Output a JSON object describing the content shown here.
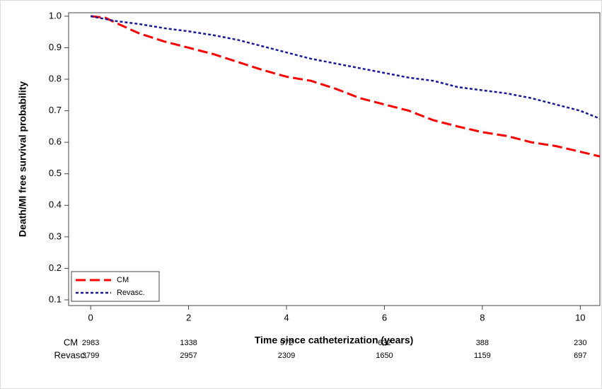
{
  "chart_data": {
    "type": "line",
    "xlabel": "Time since catheterization (years)",
    "ylabel": "Death/MI free survival probability",
    "xlim": [
      -0.45,
      10.4
    ],
    "ylim": [
      0.082,
      1.011
    ],
    "xticks": [
      0,
      2,
      4,
      6,
      8,
      10
    ],
    "yticks": [
      0.1,
      0.2,
      0.3,
      0.4,
      0.5,
      0.6,
      0.7,
      0.8,
      0.9,
      {
        "value": 1,
        "label": "1.0"
      }
    ],
    "legend": "lower-left",
    "series": [
      {
        "name": "CM",
        "color": "#ff0000",
        "line_style": "dashed",
        "x": [
          0,
          0.3,
          0.5,
          1,
          1.5,
          2,
          2.5,
          3,
          3.5,
          4,
          4.5,
          5,
          5.5,
          6,
          6.5,
          7,
          7.5,
          8,
          8.5,
          9,
          9.5,
          10,
          10.4
        ],
        "values": [
          1.0,
          0.995,
          0.98,
          0.945,
          0.92,
          0.9,
          0.88,
          0.855,
          0.83,
          0.808,
          0.795,
          0.77,
          0.74,
          0.72,
          0.7,
          0.67,
          0.65,
          0.632,
          0.62,
          0.6,
          0.588,
          0.57,
          0.555
        ]
      },
      {
        "name": "Revasc.",
        "color": "#1a1a99",
        "line_style": "dotted",
        "x": [
          0,
          0.5,
          1,
          1.5,
          2,
          2.5,
          3,
          3.5,
          4,
          4.5,
          5,
          5.5,
          6,
          6.5,
          7,
          7.5,
          8,
          8.5,
          9,
          9.5,
          10,
          10.4
        ],
        "values": [
          1.0,
          0.985,
          0.975,
          0.962,
          0.952,
          0.94,
          0.925,
          0.905,
          0.885,
          0.865,
          0.85,
          0.835,
          0.82,
          0.805,
          0.795,
          0.775,
          0.765,
          0.755,
          0.74,
          0.72,
          0.7,
          0.675
        ]
      }
    ],
    "risk_table": {
      "times": [
        0,
        2,
        4,
        6,
        8,
        10
      ],
      "rows": [
        {
          "name": "CM",
          "color": "#ff0000",
          "values": [
            2983,
            1338,
            972,
            632,
            388,
            230
          ]
        },
        {
          "name": "Revasc.",
          "color": "#1a1a99",
          "values": [
            3799,
            2957,
            2309,
            1650,
            1159,
            697
          ]
        }
      ]
    }
  }
}
